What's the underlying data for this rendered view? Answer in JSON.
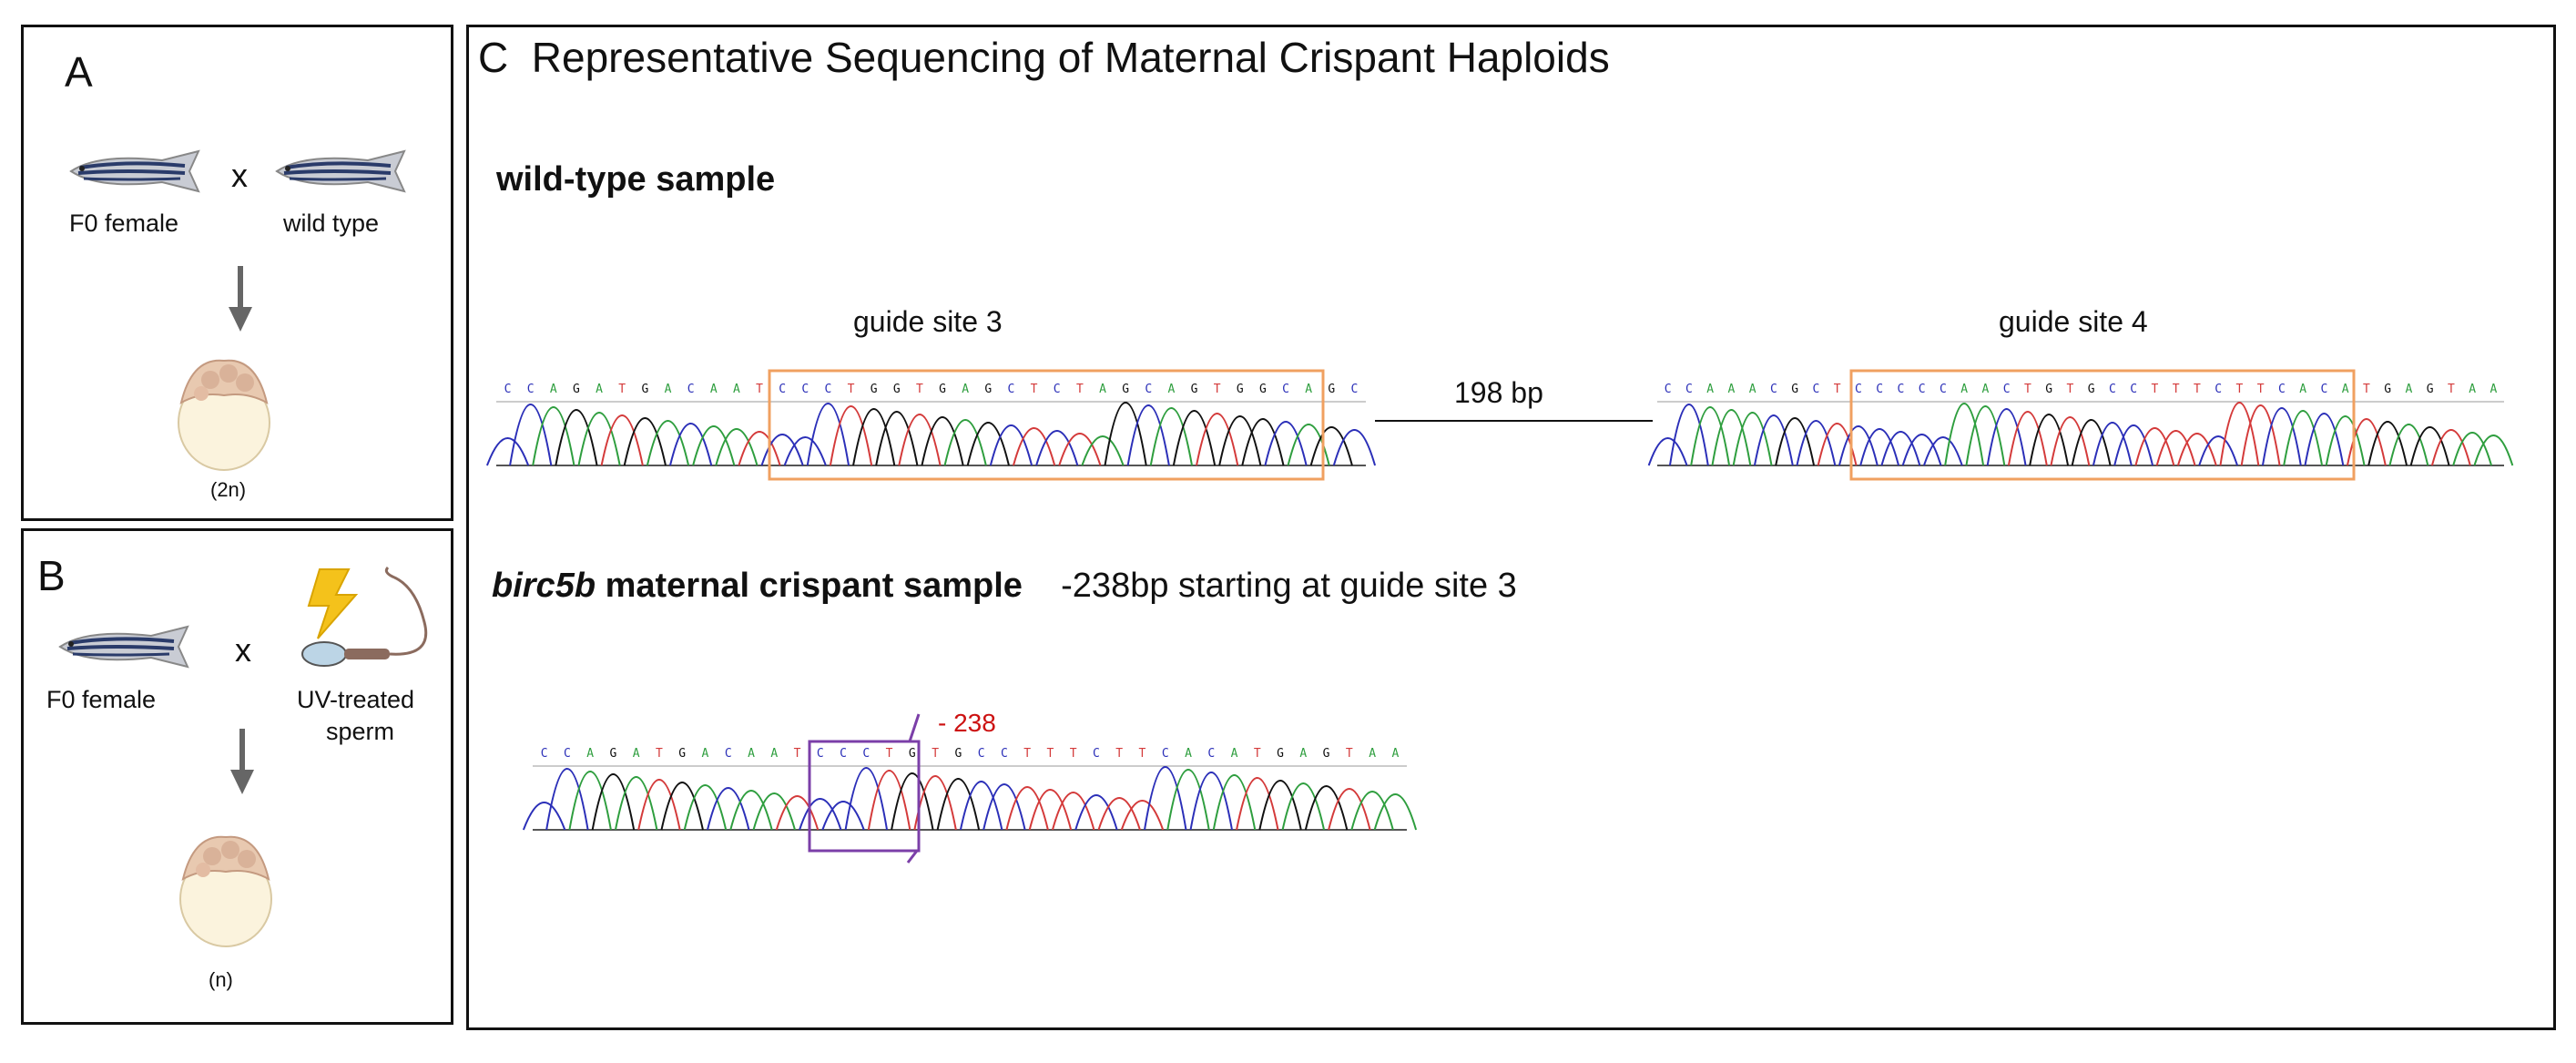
{
  "panel_a": {
    "letter": "A",
    "female_label": "F0 female",
    "cross_symbol": "x",
    "male_label": "wild type",
    "ploidy": "(2n)",
    "icons": [
      "zebrafish-icon",
      "down-arrow-icon",
      "embryo-icon"
    ]
  },
  "panel_b": {
    "letter": "B",
    "female_label": "F0 female",
    "cross_symbol": "x",
    "male_label_line1": "UV-treated",
    "male_label_line2": "sperm",
    "ploidy": "(n)",
    "icons": [
      "zebrafish-icon",
      "uv-lightning-icon",
      "sperm-icon",
      "down-arrow-icon",
      "embryo-icon"
    ]
  },
  "panel_c": {
    "letter": "C",
    "title": "Representative Sequencing of Maternal Crispant Haploids",
    "wildtype_heading": "wild-type sample",
    "guide3_label": "guide site 3",
    "guide4_label": "guide site 4",
    "gap_label": "198 bp",
    "mutant_gene": "birc5b",
    "mutant_heading_rest": " maternal crispant sample",
    "mutant_note": "-238bp starting at guide site 3",
    "deletion_label": "- 238",
    "trace1_bases": "CCAGATGACAATCCCTGGTGAGCTCTAGCAGTGGCAGC",
    "trace2_bases": "CCAAACGCTCCCCCAACTGTGCCTTTCTTCACATGAGTAA",
    "trace3_bases": "CCAGATGACAATCCCTGTGCCTTTCTTCACATGAGTAA",
    "colors": {
      "A": "#2e9e3e",
      "C": "#2b2fb8",
      "G": "#111111",
      "T": "#d43a3a",
      "box": "#f0a060",
      "deletion": "#7b3fa8",
      "deletion_text": "#cc1111"
    }
  }
}
